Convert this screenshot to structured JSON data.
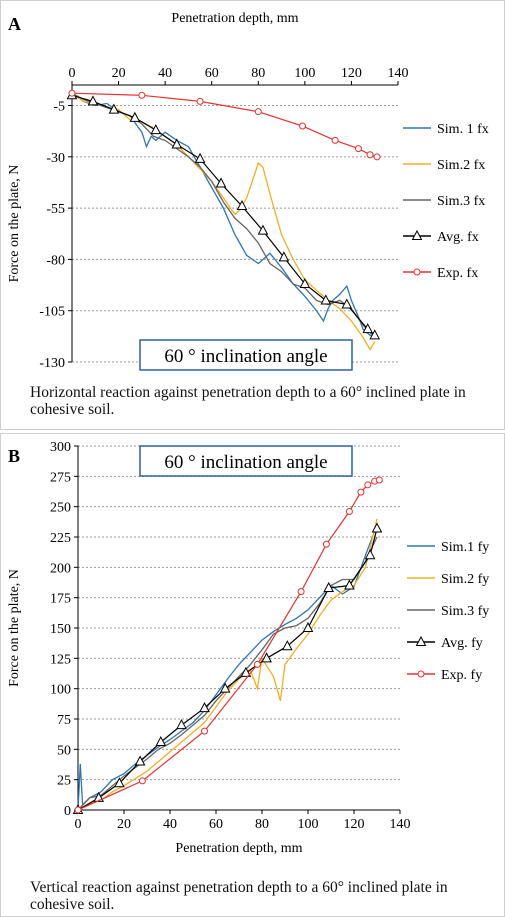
{
  "charts": [
    {
      "panel_label": "A",
      "caption": "Horizontal reaction against penetration depth to a 60° inclined plate in cohesive soil.",
      "chart_data": {
        "type": "line",
        "title": "",
        "annotation": "60 °  inclination angle",
        "xlabel": "Penetration depth, mm",
        "ylabel": "Force on the plate, N",
        "x_axis_position": "top",
        "xlim": [
          0,
          140
        ],
        "ylim": [
          -130,
          5
        ],
        "xticks": [
          0,
          20,
          40,
          60,
          80,
          100,
          120,
          140
        ],
        "yticks": [
          -5,
          -30,
          -55,
          -80,
          -105,
          -130
        ],
        "grid": "horizontal dotted",
        "legend_position": "right",
        "series": [
          {
            "name": "Sim. 1 fx",
            "color": "#2e75b6",
            "marker": "none",
            "x": [
              0,
              5,
              10,
              15,
              20,
              25,
              28,
              30,
              32,
              34,
              36,
              40,
              45,
              50,
              55,
              60,
              65,
              70,
              72,
              75,
              80,
              85,
              90,
              95,
              100,
              105,
              108,
              110,
              112,
              115,
              118,
              120,
              123,
              125,
              128,
              130
            ],
            "y": [
              1,
              -3,
              -5,
              -4,
              -8,
              -10,
              -15,
              -18,
              -25,
              -20,
              -22,
              -18,
              -22,
              -25,
              -35,
              -45,
              -55,
              -68,
              -72,
              -78,
              -82,
              -77,
              -84,
              -92,
              -98,
              -105,
              -110,
              -104,
              -100,
              -97,
              -93,
              -100,
              -108,
              -114,
              -117,
              -118
            ]
          },
          {
            "name": "Sim.2 fx",
            "color": "#f2b01e",
            "marker": "none",
            "x": [
              0,
              5,
              10,
              15,
              20,
              25,
              30,
              35,
              40,
              45,
              50,
              55,
              60,
              65,
              68,
              70,
              72,
              75,
              78,
              80,
              82,
              85,
              88,
              90,
              95,
              100,
              105,
              110,
              115,
              120,
              125,
              128,
              130
            ],
            "y": [
              1,
              -3,
              -4,
              -6,
              -7,
              -12,
              -13,
              -16,
              -20,
              -24,
              -30,
              -36,
              -42,
              -50,
              -55,
              -58,
              -56,
              -50,
              -40,
              -33,
              -35,
              -48,
              -60,
              -68,
              -80,
              -90,
              -95,
              -100,
              -104,
              -110,
              -118,
              -124,
              -120
            ]
          },
          {
            "name": "Sim.3 fx",
            "color": "#666666",
            "marker": "none",
            "x": [
              0,
              5,
              10,
              15,
              20,
              25,
              30,
              35,
              40,
              45,
              50,
              55,
              60,
              65,
              70,
              75,
              80,
              85,
              90,
              95,
              100,
              105,
              110,
              115,
              120,
              125,
              130
            ],
            "y": [
              1,
              -2,
              -4,
              -6,
              -8,
              -10,
              -14,
              -20,
              -22,
              -26,
              -30,
              -35,
              -42,
              -52,
              -60,
              -65,
              -72,
              -82,
              -86,
              -92,
              -94,
              -100,
              -102,
              -100,
              -104,
              -112,
              -118
            ]
          },
          {
            "name": "Avg. fx",
            "color": "#000000",
            "marker": "triangle",
            "x": [
              0,
              9,
              18,
              27,
              36,
              45,
              55,
              64,
              73,
              82,
              91,
              100,
              109,
              118,
              127,
              130
            ],
            "y": [
              0,
              -3,
              -7,
              -11,
              -17,
              -24,
              -31,
              -43,
              -54,
              -66,
              -79,
              -92,
              -100,
              -102,
              -114,
              -117
            ]
          },
          {
            "name": "Exp. fx",
            "color": "#e83030",
            "marker": "circle",
            "x": [
              0,
              30,
              55,
              80,
              99,
              113,
              123,
              128,
              131
            ],
            "y": [
              1,
              0,
              -3,
              -8,
              -15,
              -22,
              -26,
              -29,
              -30
            ]
          }
        ]
      }
    },
    {
      "panel_label": "B",
      "caption": "Vertical reaction against penetration depth to a 60° inclined plate in cohesive soil.",
      "chart_data": {
        "type": "line",
        "title": "",
        "annotation": "60 °  inclination angle",
        "xlabel": "Penetration depth, mm",
        "ylabel": "Force on the plate, N",
        "x_axis_position": "bottom",
        "xlim": [
          0,
          140
        ],
        "ylim": [
          0,
          300
        ],
        "xticks": [
          0,
          20,
          40,
          60,
          80,
          100,
          120,
          140
        ],
        "yticks": [
          0,
          25,
          50,
          75,
          100,
          125,
          150,
          175,
          200,
          225,
          250,
          275,
          300
        ],
        "grid": "horizontal dotted",
        "legend_position": "right",
        "series": [
          {
            "name": "Sim.1 fy",
            "color": "#2e75b6",
            "marker": "none",
            "x": [
              0,
              1,
              2,
              5,
              10,
              15,
              20,
              25,
              30,
              35,
              40,
              45,
              50,
              55,
              60,
              65,
              70,
              75,
              80,
              85,
              90,
              95,
              100,
              105,
              110,
              115,
              120,
              125,
              130
            ],
            "y": [
              0,
              38,
              4,
              10,
              15,
              25,
              30,
              38,
              45,
              52,
              58,
              65,
              72,
              82,
              95,
              108,
              120,
              130,
              140,
              147,
              153,
              158,
              165,
              175,
              185,
              178,
              184,
              210,
              235
            ]
          },
          {
            "name": "Sim.2 fy",
            "color": "#f2b01e",
            "marker": "none",
            "x": [
              0,
              5,
              10,
              15,
              20,
              25,
              30,
              35,
              40,
              45,
              50,
              55,
              60,
              65,
              70,
              75,
              78,
              80,
              85,
              88,
              90,
              95,
              100,
              105,
              110,
              115,
              120,
              125,
              130
            ],
            "y": [
              0,
              5,
              8,
              15,
              20,
              26,
              32,
              40,
              48,
              56,
              64,
              72,
              85,
              98,
              108,
              115,
              100,
              125,
              110,
              90,
              120,
              133,
              145,
              160,
              173,
              180,
              185,
              200,
              240
            ]
          },
          {
            "name": "Sim.3 fy",
            "color": "#666666",
            "marker": "none",
            "x": [
              0,
              5,
              10,
              15,
              20,
              25,
              30,
              35,
              40,
              45,
              50,
              55,
              60,
              65,
              70,
              75,
              80,
              85,
              90,
              95,
              100,
              105,
              110,
              115,
              120,
              125,
              130
            ],
            "y": [
              0,
              10,
              12,
              20,
              28,
              35,
              42,
              50,
              55,
              62,
              70,
              78,
              90,
              100,
              110,
              120,
              132,
              145,
              150,
              152,
              158,
              170,
              185,
              190,
              190,
              205,
              225
            ]
          },
          {
            "name": "Avg. fy",
            "color": "#000000",
            "marker": "triangle",
            "x": [
              0,
              9,
              18,
              27,
              36,
              45,
              55,
              64,
              73,
              82,
              91,
              100,
              109,
              118,
              127,
              130
            ],
            "y": [
              0,
              10,
              22,
              40,
              56,
              70,
              84,
              100,
              113,
              125,
              135,
              150,
              183,
              185,
              210,
              232
            ]
          },
          {
            "name": "Exp. fy",
            "color": "#e83030",
            "marker": "circle",
            "x": [
              0,
              28,
              55,
              78,
              97,
              108,
              118,
              123,
              126,
              129,
              131
            ],
            "y": [
              0,
              24,
              65,
              120,
              180,
              219,
              246,
              262,
              268,
              271,
              272
            ]
          }
        ]
      }
    }
  ]
}
